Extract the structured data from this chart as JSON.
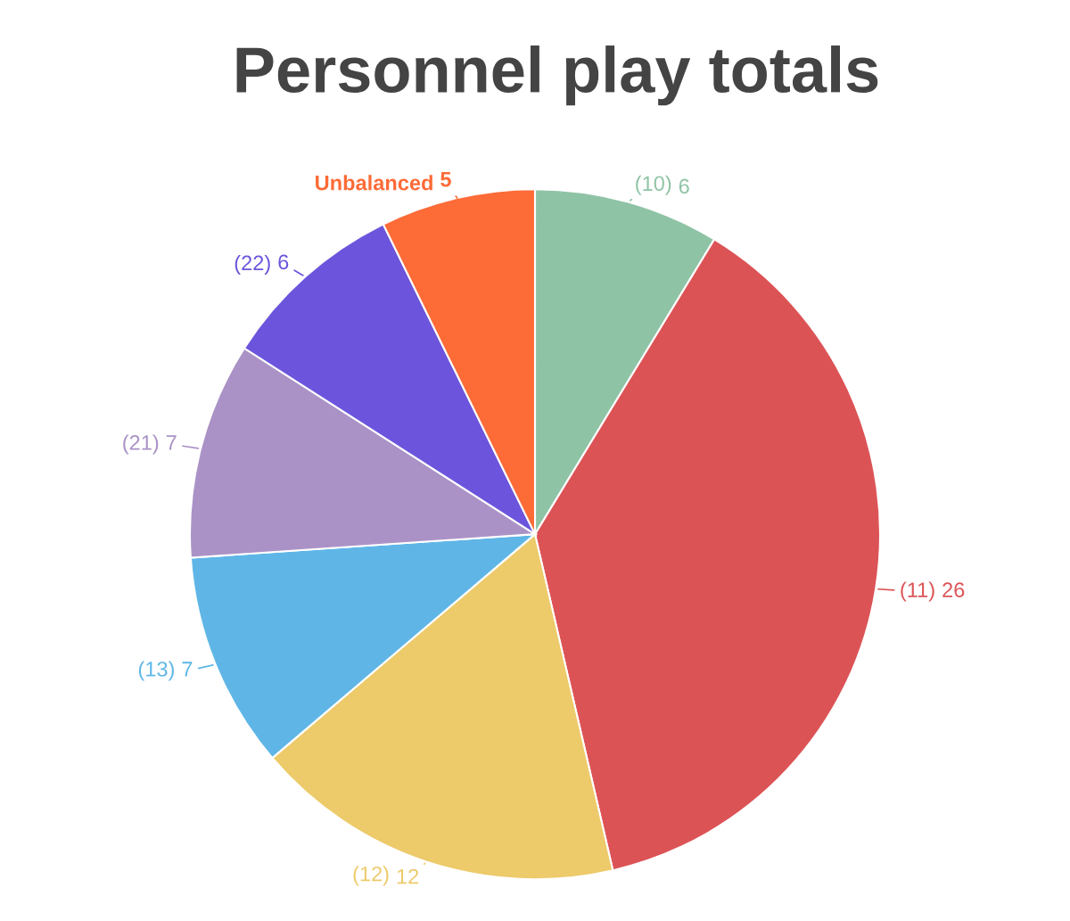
{
  "chart_data": {
    "type": "pie",
    "title": "Personnel play totals",
    "categories": [
      "(10)",
      "(11)",
      "(12)",
      "(13)",
      "(21)",
      "(22)",
      "Unbalanced"
    ],
    "values": [
      6,
      26,
      12,
      7,
      7,
      6,
      5
    ],
    "colors": [
      "#8fc3a5",
      "#dc5356",
      "#edca6a",
      "#5fb6e6",
      "#aa92c6",
      "#6c55dc",
      "#fd6b37"
    ],
    "data_labels": true,
    "legend": false
  }
}
